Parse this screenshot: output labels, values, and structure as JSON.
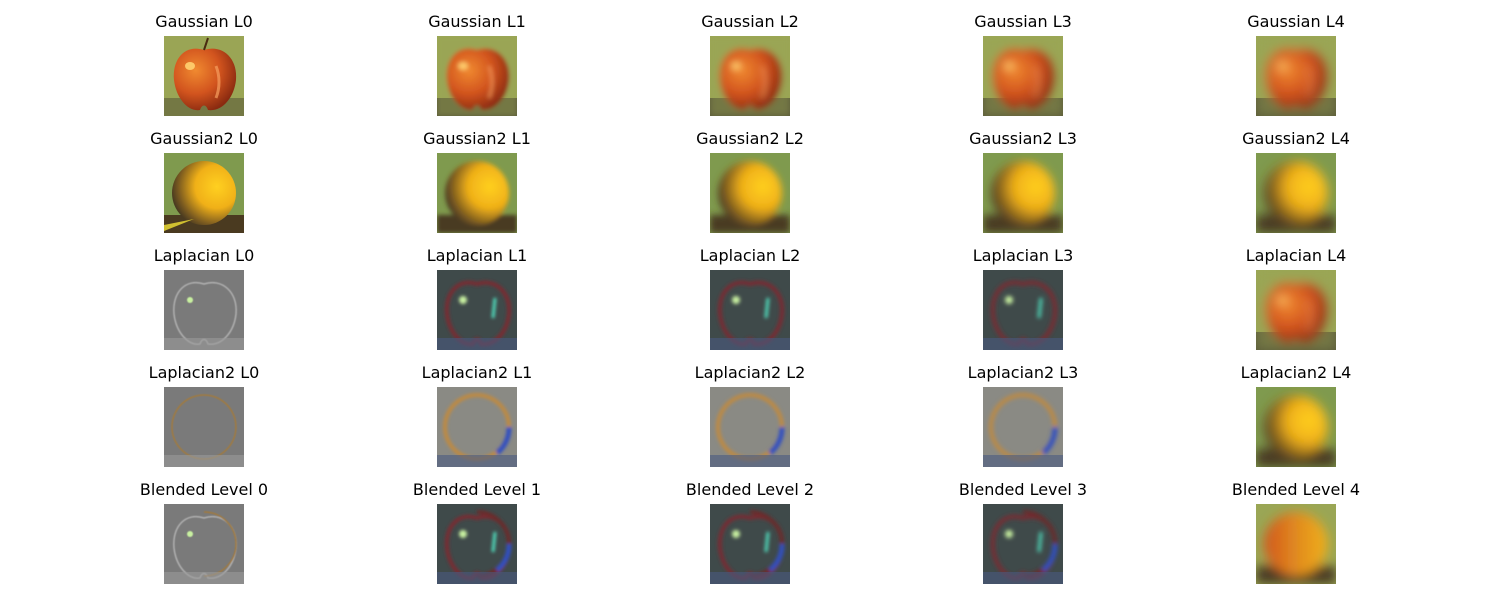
{
  "figure": {
    "rows": [
      {
        "name": "gaussian",
        "titles": [
          "Gaussian L0",
          "Gaussian L1",
          "Gaussian L2",
          "Gaussian L3",
          "Gaussian L4"
        ],
        "icons": [
          "apple-icon",
          "apple-icon",
          "apple-icon",
          "apple-icon",
          "apple-icon"
        ]
      },
      {
        "name": "gaussian2",
        "titles": [
          "Gaussian2 L0",
          "Gaussian2 L1",
          "Gaussian2 L2",
          "Gaussian2 L3",
          "Gaussian2 L4"
        ],
        "icons": [
          "orange-icon",
          "orange-icon",
          "orange-icon",
          "orange-icon",
          "orange-icon"
        ]
      },
      {
        "name": "laplacian",
        "titles": [
          "Laplacian L0",
          "Laplacian L1",
          "Laplacian L2",
          "Laplacian L3",
          "Laplacian L4"
        ],
        "icons": [
          "apple-edges-icon",
          "apple-edges-icon",
          "apple-edges-icon",
          "apple-edges-icon",
          "apple-icon"
        ]
      },
      {
        "name": "laplacian2",
        "titles": [
          "Laplacian2 L0",
          "Laplacian2 L1",
          "Laplacian2 L2",
          "Laplacian2 L3",
          "Laplacian2 L4"
        ],
        "icons": [
          "orange-edges-icon",
          "orange-edges-icon",
          "orange-edges-icon",
          "orange-edges-icon",
          "orange-icon"
        ]
      },
      {
        "name": "blended",
        "titles": [
          "Blended Level 0",
          "Blended Level 1",
          "Blended Level 2",
          "Blended Level 3",
          "Blended Level 4"
        ],
        "icons": [
          "blended-edges-icon",
          "blended-edges-icon",
          "blended-edges-icon",
          "blended-edges-icon",
          "blended-icon"
        ]
      }
    ]
  },
  "colors": {
    "apple": "#d2541e",
    "apple_background": "#9aa655",
    "orange": "#f0b018",
    "orange_background": "#7f9a4e",
    "laplacian_gray": "#7a7a7a",
    "laplacian_dark": "#3f4a4a"
  }
}
